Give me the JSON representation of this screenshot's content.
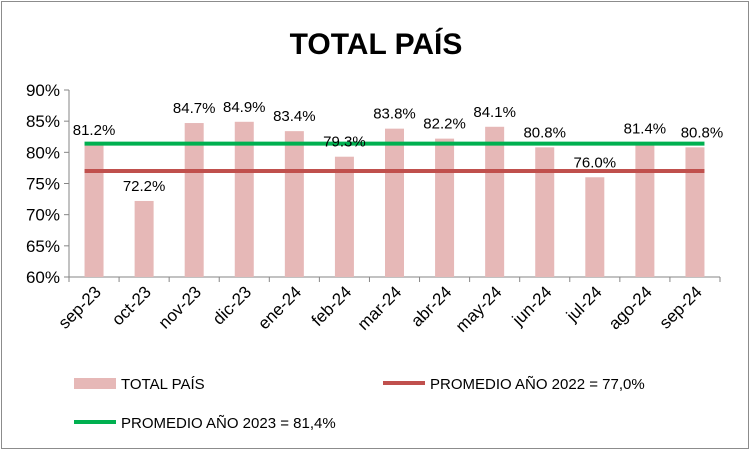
{
  "chart_data": {
    "type": "bar",
    "title": "TOTAL PAÍS",
    "categories": [
      "sep-23",
      "oct-23",
      "nov-23",
      "dic-23",
      "ene-24",
      "feb-24",
      "mar-24",
      "abr-24",
      "may-24",
      "jun-24",
      "jul-24",
      "ago-24",
      "sep-24"
    ],
    "series": [
      {
        "name": "TOTAL PAÍS",
        "type": "bar",
        "color": "#e6b8b7",
        "values": [
          81.2,
          72.2,
          84.7,
          84.9,
          83.4,
          79.3,
          83.8,
          82.2,
          84.1,
          80.8,
          76.0,
          81.4,
          80.8
        ],
        "labels": [
          "81.2%",
          "72.2%",
          "84.7%",
          "84.9%",
          "83.4%",
          "79.3%",
          "83.8%",
          "82.2%",
          "84.1%",
          "80.8%",
          "76.0%",
          "81.4%",
          "80.8%"
        ]
      },
      {
        "name": "PROMEDIO AÑO 2022 = 77,0%",
        "type": "line",
        "color": "#c0504d",
        "value": 77.0
      },
      {
        "name": "PROMEDIO AÑO 2023 = 81,4%",
        "type": "line",
        "color": "#00b050",
        "value": 81.4
      }
    ],
    "ylim": [
      60,
      90
    ],
    "yticks": [
      60,
      65,
      70,
      75,
      80,
      85,
      90
    ],
    "ytick_labels": [
      "60%",
      "65%",
      "70%",
      "75%",
      "80%",
      "85%",
      "90%"
    ],
    "grid": false,
    "legend_position": "bottom"
  }
}
